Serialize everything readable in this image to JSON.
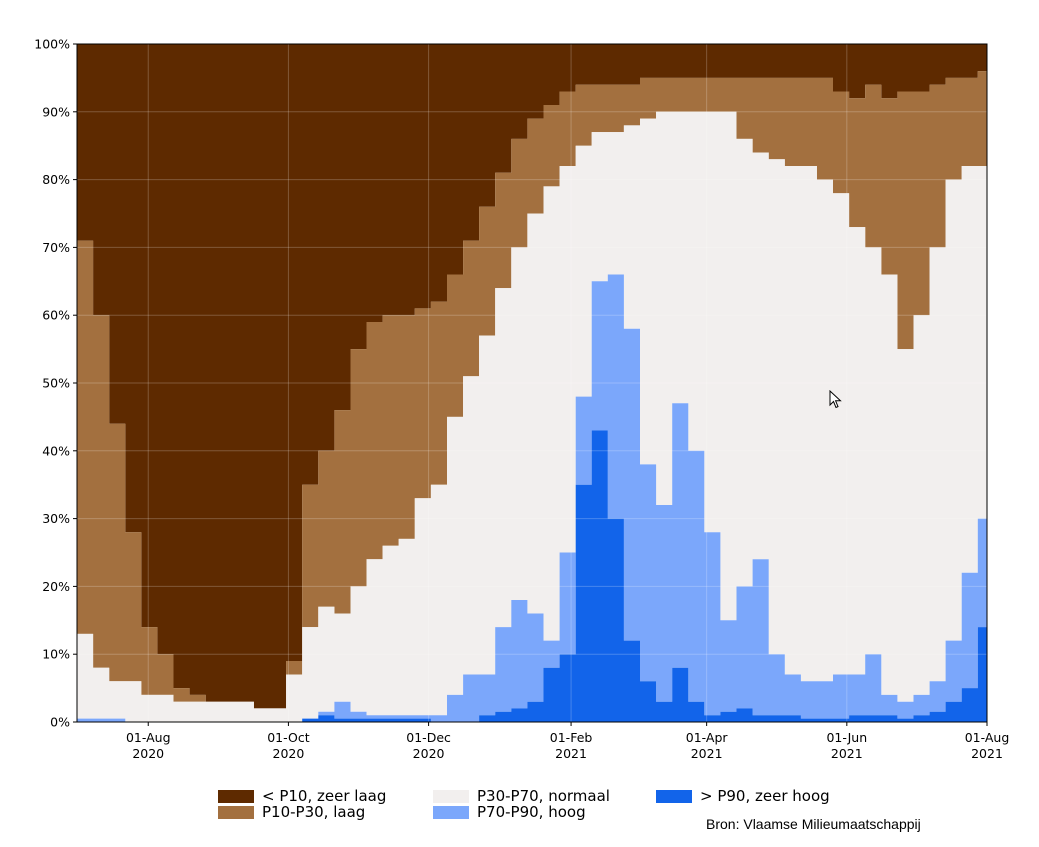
{
  "chart_data": {
    "type": "area",
    "stacked": true,
    "x_start": "2020-07-01",
    "x_end": "2021-08-01",
    "y_range": [
      0,
      100
    ],
    "y_unit": "%",
    "grid": true,
    "y_ticks": [
      "0%",
      "10%",
      "20%",
      "30%",
      "40%",
      "50%",
      "60%",
      "70%",
      "80%",
      "90%",
      "100%"
    ],
    "x_ticks": [
      {
        "date": "2020-08-01",
        "label_line1": "01-Aug",
        "label_line2": "2020"
      },
      {
        "date": "2020-10-01",
        "label_line1": "01-Oct",
        "label_line2": "2020"
      },
      {
        "date": "2020-12-01",
        "label_line1": "01-Dec",
        "label_line2": "2020"
      },
      {
        "date": "2021-02-01",
        "label_line1": "01-Feb",
        "label_line2": "2021"
      },
      {
        "date": "2021-04-01",
        "label_line1": "01-Apr",
        "label_line2": "2021"
      },
      {
        "date": "2021-06-01",
        "label_line1": "01-Jun",
        "label_line2": "2021"
      },
      {
        "date": "2021-08-01",
        "label_line1": "01-Aug",
        "label_line2": "2021"
      }
    ],
    "boundaries": {
      "dates": [
        "2020-07-01",
        "2020-07-08",
        "2020-07-15",
        "2020-07-22",
        "2020-07-29",
        "2020-08-05",
        "2020-08-12",
        "2020-08-19",
        "2020-08-26",
        "2020-09-02",
        "2020-09-09",
        "2020-09-16",
        "2020-09-23",
        "2020-09-30",
        "2020-10-07",
        "2020-10-14",
        "2020-10-21",
        "2020-10-28",
        "2020-11-04",
        "2020-11-11",
        "2020-11-18",
        "2020-11-25",
        "2020-12-02",
        "2020-12-09",
        "2020-12-16",
        "2020-12-23",
        "2020-12-30",
        "2021-01-06",
        "2021-01-13",
        "2021-01-20",
        "2021-01-27",
        "2021-02-03",
        "2021-02-10",
        "2021-02-17",
        "2021-02-24",
        "2021-03-03",
        "2021-03-10",
        "2021-03-17",
        "2021-03-24",
        "2021-03-31",
        "2021-04-07",
        "2021-04-14",
        "2021-04-21",
        "2021-04-28",
        "2021-05-05",
        "2021-05-12",
        "2021-05-19",
        "2021-05-26",
        "2021-06-02",
        "2021-06-09",
        "2021-06-16",
        "2021-06-23",
        "2021-06-30",
        "2021-07-07",
        "2021-07-14",
        "2021-07-21",
        "2021-07-28",
        "2021-08-01"
      ],
      "gt_p90": [
        0,
        0,
        0,
        0,
        0,
        0,
        0,
        0,
        0,
        0,
        0,
        0,
        0,
        0,
        0.5,
        1,
        0.5,
        0.5,
        0.5,
        0.5,
        0.5,
        0.5,
        0,
        0,
        0,
        1,
        1.5,
        2,
        3,
        8,
        10,
        35,
        43,
        30,
        12,
        6,
        3,
        8,
        3,
        1,
        1.5,
        2,
        1,
        1,
        1,
        0.5,
        0.5,
        0.5,
        1,
        1,
        1,
        0.5,
        1,
        1.5,
        3,
        5,
        14,
        7
      ],
      "p70_p90": [
        0.5,
        0.5,
        0.5,
        0,
        0,
        0,
        0,
        0,
        0,
        0,
        0,
        0,
        0,
        0,
        0.5,
        1.5,
        3,
        1.5,
        1,
        1,
        1,
        1,
        1,
        4,
        7,
        7,
        14,
        18,
        16,
        12,
        25,
        48,
        65,
        66,
        58,
        38,
        32,
        47,
        40,
        28,
        15,
        20,
        24,
        10,
        7,
        6,
        6,
        7,
        7,
        10,
        4,
        3,
        4,
        6,
        12,
        22,
        30,
        25
      ],
      "p30_p70": [
        13,
        8,
        6,
        6,
        4,
        4,
        3,
        3,
        3,
        3,
        3,
        2,
        2,
        7,
        14,
        17,
        16,
        20,
        24,
        26,
        27,
        33,
        35,
        45,
        51,
        57,
        64,
        70,
        75,
        79,
        82,
        85,
        87,
        87,
        88,
        89,
        90,
        90,
        90,
        90,
        90,
        86,
        84,
        83,
        82,
        82,
        80,
        78,
        73,
        70,
        66,
        55,
        60,
        70,
        80,
        82,
        82,
        82
      ],
      "p10_p30": [
        71,
        60,
        44,
        28,
        14,
        10,
        5,
        4,
        3,
        3,
        3,
        2,
        2,
        9,
        35,
        40,
        46,
        55,
        59,
        60,
        60,
        61,
        62,
        66,
        71,
        76,
        81,
        86,
        89,
        91,
        93,
        94,
        94,
        94,
        94,
        95,
        95,
        95,
        95,
        95,
        95,
        95,
        95,
        95,
        95,
        95,
        95,
        93,
        92,
        94,
        92,
        93,
        93,
        94,
        95,
        95,
        96,
        96
      ]
    },
    "series": [
      {
        "name": "< P10, zeer laag",
        "color": "#5e2a00"
      },
      {
        "name": "P10-P30, laag",
        "color": "#a3703f"
      },
      {
        "name": "P30-P70, normaal",
        "color": "#f2efee"
      },
      {
        "name": "P70-P90, hoog",
        "color": "#7ba7fb"
      },
      {
        "name": "> P90, zeer hoog",
        "color": "#1264ea"
      }
    ]
  },
  "legend": {
    "item1": "< P10, zeer laag",
    "item2": "P10-P30, laag",
    "item3": "P30-P70, normaal",
    "item4": "P70-P90, hoog",
    "item5": "> P90, zeer hoog"
  },
  "source": "Bron: Vlaamse Milieumaatschappij",
  "icons": {
    "cursor": "mouse-pointer-icon"
  }
}
